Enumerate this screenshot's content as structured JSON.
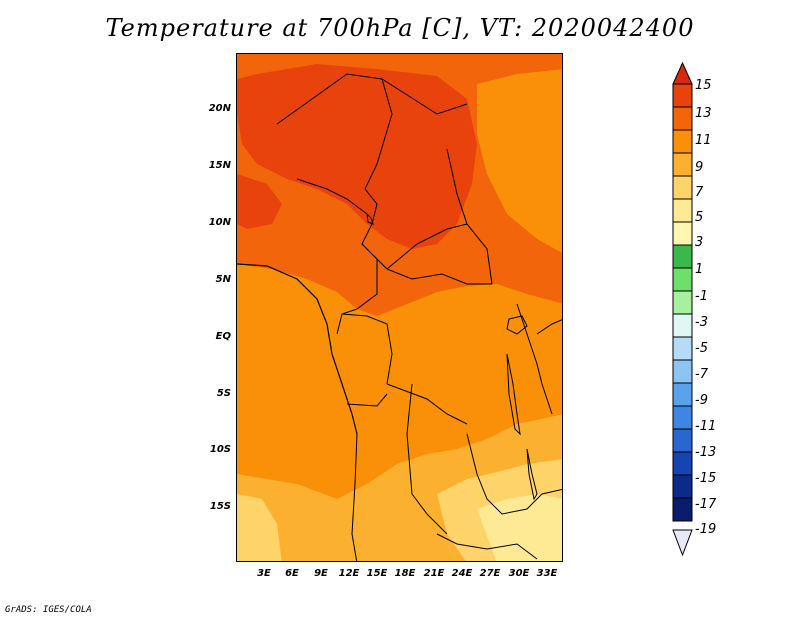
{
  "title": "Temperature at 700hPa [C], VT: 2020042400",
  "credit": "GrADS: IGES/COLA",
  "lat_labels": [
    {
      "label": "20N",
      "value": 20
    },
    {
      "label": "15N",
      "value": 15
    },
    {
      "label": "10N",
      "value": 10
    },
    {
      "label": "5N",
      "value": 5
    },
    {
      "label": "EQ",
      "value": 0
    },
    {
      "label": "5S",
      "value": -5
    },
    {
      "label": "10S",
      "value": -10
    },
    {
      "label": "15S",
      "value": -15
    }
  ],
  "lon_labels": [
    {
      "label": "3E",
      "value": 3
    },
    {
      "label": "6E",
      "value": 6
    },
    {
      "label": "9E",
      "value": 9
    },
    {
      "label": "12E",
      "value": 12
    },
    {
      "label": "15E",
      "value": 15
    },
    {
      "label": "18E",
      "value": 18
    },
    {
      "label": "21E",
      "value": 21
    },
    {
      "label": "24E",
      "value": 24
    },
    {
      "label": "27E",
      "value": 27
    },
    {
      "label": "30E",
      "value": 30
    },
    {
      "label": "33E",
      "value": 33
    }
  ],
  "colorbar": {
    "levels": [
      "15",
      "13",
      "11",
      "9",
      "7",
      "5",
      "3",
      "1",
      "-1",
      "-3",
      "-5",
      "-7",
      "-9",
      "-11",
      "-13",
      "-15",
      "-17",
      "-19"
    ],
    "colors": [
      "#d52a0d",
      "#e84f0c",
      "#f27e0a",
      "#f79e0e",
      "#fbbd42",
      "#fde07a",
      "#fff7b0",
      "#3cb84a",
      "#6ee06a",
      "#a6f0a0",
      "#e0f7f4",
      "#b4dcf6",
      "#8cc4f2",
      "#5ba2eb",
      "#3f86e2",
      "#2a66d0",
      "#1445b0",
      "#0b2a8a",
      "#0a1c6c"
    ]
  },
  "field_colors": {
    "c13": "#e8430c",
    "c11": "#f2650a",
    "c9": "#f99008",
    "c7": "#fbb030",
    "c5": "#fdd36a",
    "c3": "#feea95"
  }
}
